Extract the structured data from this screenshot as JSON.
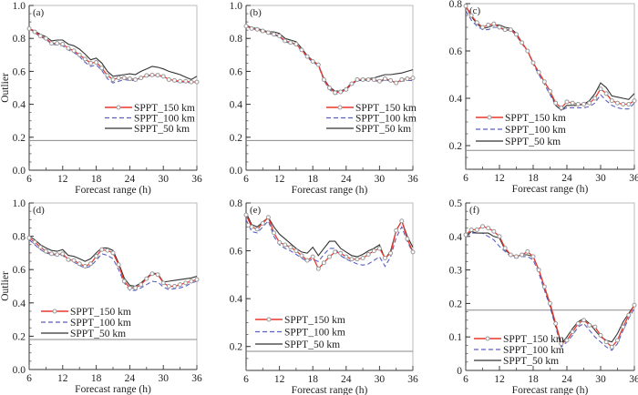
{
  "colors": {
    "s150": "#e8392c",
    "s100": "#5a5fc0",
    "s50": "#333333",
    "marker": "#9a9a9a",
    "threshold": "#888888",
    "frame": "#bbbbbb"
  },
  "chart_data": [
    {
      "type": "line",
      "panel_label": "(a)",
      "xlabel": "Forecast  range  (h)",
      "ylabel": "Outlier",
      "xlim": [
        6,
        36
      ],
      "xticks": [
        6,
        12,
        18,
        24,
        30,
        36
      ],
      "xtick_labels": [
        "6",
        "12",
        "18",
        "24",
        "30",
        "36"
      ],
      "ylim": [
        0,
        1.0
      ],
      "yticks": [
        0,
        0.2,
        0.4,
        0.6,
        0.8,
        1.0
      ],
      "ytick_labels": [
        "0.0",
        "0.2",
        "0.4",
        "0.6",
        "0.8",
        "1.0"
      ],
      "threshold": 0.18,
      "legend_position": "center-right",
      "x": [
        6,
        7,
        8,
        9,
        10,
        11,
        12,
        13,
        14,
        15,
        16,
        17,
        18,
        19,
        20,
        21,
        22,
        23,
        24,
        25,
        26,
        27,
        28,
        29,
        30,
        31,
        32,
        33,
        34,
        35,
        36
      ],
      "series": [
        {
          "name": "SPPT_150 km",
          "values": [
            0.86,
            0.84,
            0.815,
            0.8,
            0.77,
            0.77,
            0.765,
            0.74,
            0.725,
            0.7,
            0.675,
            0.65,
            0.655,
            0.62,
            0.575,
            0.55,
            0.56,
            0.56,
            0.555,
            0.55,
            0.56,
            0.575,
            0.578,
            0.577,
            0.57,
            0.55,
            0.545,
            0.54,
            0.54,
            0.535,
            0.535
          ]
        },
        {
          "name": "SPPT_100 km",
          "values": [
            0.86,
            0.835,
            0.81,
            0.795,
            0.765,
            0.76,
            0.755,
            0.73,
            0.715,
            0.69,
            0.655,
            0.63,
            0.64,
            0.605,
            0.555,
            0.53,
            0.54,
            0.55,
            0.545,
            0.545,
            0.555,
            0.57,
            0.575,
            0.575,
            0.565,
            0.545,
            0.54,
            0.535,
            0.535,
            0.53,
            0.53
          ]
        },
        {
          "name": "SPPT_50 km",
          "values": [
            0.86,
            0.845,
            0.825,
            0.81,
            0.785,
            0.79,
            0.79,
            0.765,
            0.755,
            0.735,
            0.705,
            0.67,
            0.68,
            0.65,
            0.6,
            0.57,
            0.575,
            0.58,
            0.585,
            0.58,
            0.6,
            0.615,
            0.63,
            0.625,
            0.615,
            0.6,
            0.59,
            0.58,
            0.565,
            0.55,
            0.57
          ]
        }
      ]
    },
    {
      "type": "line",
      "panel_label": "(b)",
      "xlabel": "Forecast  range  (h)",
      "ylabel": "",
      "xlim": [
        6,
        36
      ],
      "xticks": [
        6,
        12,
        18,
        24,
        30,
        36
      ],
      "xtick_labels": [
        "6",
        "12",
        "18",
        "24",
        "30",
        "36"
      ],
      "ylim": [
        0,
        1.0
      ],
      "yticks": [
        0,
        0.2,
        0.4,
        0.6,
        0.8,
        1.0
      ],
      "ytick_labels": [
        "0.0",
        "0.2",
        "0.4",
        "0.6",
        "0.8",
        "1.0"
      ],
      "threshold": 0.18,
      "legend_position": "center-right",
      "x": [
        6,
        7,
        8,
        9,
        10,
        11,
        12,
        13,
        14,
        15,
        16,
        17,
        18,
        19,
        20,
        21,
        22,
        23,
        24,
        25,
        26,
        27,
        28,
        29,
        30,
        31,
        32,
        33,
        34,
        35,
        36
      ],
      "series": [
        {
          "name": "SPPT_150 km",
          "values": [
            0.875,
            0.86,
            0.855,
            0.845,
            0.835,
            0.825,
            0.815,
            0.785,
            0.775,
            0.765,
            0.73,
            0.69,
            0.66,
            0.64,
            0.55,
            0.5,
            0.47,
            0.475,
            0.49,
            0.525,
            0.55,
            0.55,
            0.55,
            0.55,
            0.54,
            0.555,
            0.545,
            0.53,
            0.55,
            0.555,
            0.56
          ]
        },
        {
          "name": "SPPT_100 km",
          "values": [
            0.875,
            0.86,
            0.85,
            0.84,
            0.83,
            0.82,
            0.81,
            0.78,
            0.77,
            0.76,
            0.725,
            0.685,
            0.655,
            0.635,
            0.545,
            0.49,
            0.46,
            0.47,
            0.49,
            0.52,
            0.545,
            0.545,
            0.545,
            0.545,
            0.535,
            0.55,
            0.54,
            0.53,
            0.54,
            0.545,
            0.545
          ]
        },
        {
          "name": "SPPT_50 km",
          "values": [
            0.88,
            0.865,
            0.86,
            0.85,
            0.84,
            0.84,
            0.83,
            0.8,
            0.79,
            0.78,
            0.74,
            0.695,
            0.665,
            0.64,
            0.555,
            0.505,
            0.48,
            0.48,
            0.495,
            0.53,
            0.545,
            0.55,
            0.555,
            0.56,
            0.57,
            0.58,
            0.58,
            0.585,
            0.59,
            0.6,
            0.61
          ]
        }
      ]
    },
    {
      "type": "line",
      "panel_label": "(c)",
      "xlabel": "Forecast  range  (h)",
      "ylabel": "",
      "xlim": [
        6,
        36
      ],
      "xticks": [
        6,
        12,
        18,
        24,
        30,
        36
      ],
      "xtick_labels": [
        "6",
        "12",
        "18",
        "24",
        "30",
        "36"
      ],
      "ylim": [
        0.1,
        0.8
      ],
      "yticks": [
        0.2,
        0.4,
        0.6,
        0.8
      ],
      "ytick_labels": [
        "0.2",
        "0.4",
        "0.6",
        "0.8"
      ],
      "threshold": 0.18,
      "legend_position": "lower-left",
      "x": [
        6,
        7,
        8,
        9,
        10,
        11,
        12,
        13,
        14,
        15,
        16,
        17,
        18,
        19,
        20,
        21,
        22,
        23,
        24,
        25,
        26,
        27,
        28,
        29,
        30,
        31,
        32,
        33,
        34,
        35,
        36
      ],
      "series": [
        {
          "name": "SPPT_150 km",
          "values": [
            0.79,
            0.75,
            0.72,
            0.7,
            0.71,
            0.715,
            0.7,
            0.69,
            0.69,
            0.67,
            0.635,
            0.6,
            0.55,
            0.51,
            0.47,
            0.43,
            0.38,
            0.36,
            0.385,
            0.38,
            0.375,
            0.375,
            0.38,
            0.4,
            0.44,
            0.42,
            0.39,
            0.38,
            0.375,
            0.375,
            0.39
          ]
        },
        {
          "name": "SPPT_100 km",
          "values": [
            0.77,
            0.73,
            0.705,
            0.69,
            0.69,
            0.7,
            0.7,
            0.685,
            0.69,
            0.665,
            0.63,
            0.6,
            0.545,
            0.5,
            0.46,
            0.415,
            0.37,
            0.35,
            0.36,
            0.36,
            0.36,
            0.36,
            0.365,
            0.38,
            0.415,
            0.39,
            0.37,
            0.36,
            0.355,
            0.355,
            0.38
          ]
        },
        {
          "name": "SPPT_50 km",
          "values": [
            0.79,
            0.745,
            0.715,
            0.695,
            0.7,
            0.71,
            0.71,
            0.7,
            0.695,
            0.675,
            0.635,
            0.6,
            0.55,
            0.51,
            0.47,
            0.43,
            0.37,
            0.35,
            0.37,
            0.37,
            0.37,
            0.375,
            0.39,
            0.42,
            0.465,
            0.445,
            0.41,
            0.405,
            0.4,
            0.395,
            0.42
          ]
        }
      ]
    },
    {
      "type": "line",
      "panel_label": "(d)",
      "xlabel": "Forecast  range  (h)",
      "ylabel": "Outlier",
      "xlim": [
        6,
        36
      ],
      "xticks": [
        6,
        12,
        18,
        24,
        30,
        36
      ],
      "xtick_labels": [
        "6",
        "12",
        "18",
        "24",
        "30",
        "36"
      ],
      "ylim": [
        0,
        1.0
      ],
      "yticks": [
        0,
        0.2,
        0.4,
        0.6,
        0.8,
        1.0
      ],
      "ytick_labels": [
        "0.0",
        "0.2",
        "0.4",
        "0.6",
        "0.8",
        "1.0"
      ],
      "threshold": 0.18,
      "legend_position": "center-left",
      "x": [
        6,
        7,
        8,
        9,
        10,
        11,
        12,
        13,
        14,
        15,
        16,
        17,
        18,
        19,
        20,
        21,
        22,
        23,
        24,
        25,
        26,
        27,
        28,
        29,
        30,
        31,
        32,
        33,
        34,
        35,
        36
      ],
      "series": [
        {
          "name": "SPPT_150 km",
          "values": [
            0.79,
            0.765,
            0.735,
            0.71,
            0.695,
            0.69,
            0.695,
            0.66,
            0.655,
            0.635,
            0.62,
            0.635,
            0.68,
            0.72,
            0.715,
            0.7,
            0.63,
            0.53,
            0.49,
            0.49,
            0.51,
            0.545,
            0.575,
            0.57,
            0.52,
            0.5,
            0.5,
            0.51,
            0.52,
            0.53,
            0.54
          ]
        },
        {
          "name": "SPPT_100 km",
          "values": [
            0.78,
            0.75,
            0.72,
            0.7,
            0.69,
            0.685,
            0.685,
            0.655,
            0.645,
            0.625,
            0.61,
            0.62,
            0.655,
            0.695,
            0.685,
            0.665,
            0.6,
            0.52,
            0.475,
            0.475,
            0.49,
            0.51,
            0.53,
            0.525,
            0.495,
            0.48,
            0.485,
            0.49,
            0.5,
            0.52,
            0.53
          ]
        },
        {
          "name": "SPPT_50 km",
          "values": [
            0.8,
            0.78,
            0.75,
            0.73,
            0.715,
            0.71,
            0.72,
            0.685,
            0.68,
            0.665,
            0.65,
            0.665,
            0.7,
            0.73,
            0.73,
            0.715,
            0.64,
            0.55,
            0.505,
            0.5,
            0.52,
            0.55,
            0.58,
            0.575,
            0.525,
            0.53,
            0.535,
            0.54,
            0.545,
            0.55,
            0.56
          ]
        }
      ]
    },
    {
      "type": "line",
      "panel_label": "(e)",
      "xlabel": "Forecast  range  (h)",
      "ylabel": "",
      "xlim": [
        6,
        36
      ],
      "xticks": [
        6,
        12,
        18,
        24,
        30,
        36
      ],
      "xtick_labels": [
        "6",
        "12",
        "18",
        "24",
        "30",
        "36"
      ],
      "ylim": [
        0.1,
        0.8
      ],
      "yticks": [
        0.2,
        0.4,
        0.6,
        0.8
      ],
      "ytick_labels": [
        "0.2",
        "0.4",
        "0.6",
        "0.8"
      ],
      "threshold": 0.18,
      "legend_position": "lower-left",
      "x": [
        6,
        7,
        8,
        9,
        10,
        11,
        12,
        13,
        14,
        15,
        16,
        17,
        18,
        19,
        20,
        21,
        22,
        23,
        24,
        25,
        26,
        27,
        28,
        29,
        30,
        31,
        32,
        33,
        34,
        35,
        36
      ],
      "series": [
        {
          "name": "SPPT_150 km",
          "values": [
            0.75,
            0.7,
            0.69,
            0.715,
            0.74,
            0.675,
            0.635,
            0.625,
            0.615,
            0.6,
            0.58,
            0.56,
            0.575,
            0.525,
            0.55,
            0.575,
            0.595,
            0.59,
            0.575,
            0.565,
            0.565,
            0.57,
            0.585,
            0.6,
            0.61,
            0.57,
            0.59,
            0.685,
            0.725,
            0.65,
            0.595
          ]
        },
        {
          "name": "SPPT_100 km",
          "values": [
            0.73,
            0.68,
            0.675,
            0.7,
            0.725,
            0.66,
            0.625,
            0.61,
            0.6,
            0.585,
            0.57,
            0.555,
            0.565,
            0.555,
            0.585,
            0.61,
            0.61,
            0.58,
            0.565,
            0.555,
            0.545,
            0.54,
            0.545,
            0.56,
            0.575,
            0.535,
            0.575,
            0.655,
            0.7,
            0.64,
            0.59
          ]
        },
        {
          "name": "SPPT_50 km",
          "values": [
            0.76,
            0.71,
            0.7,
            0.72,
            0.74,
            0.7,
            0.67,
            0.65,
            0.63,
            0.61,
            0.595,
            0.59,
            0.615,
            0.58,
            0.61,
            0.64,
            0.64,
            0.61,
            0.595,
            0.58,
            0.575,
            0.585,
            0.6,
            0.61,
            0.625,
            0.565,
            0.6,
            0.685,
            0.725,
            0.66,
            0.615
          ]
        }
      ]
    },
    {
      "type": "line",
      "panel_label": "(f)",
      "xlabel": "Forecast  range  (h)",
      "ylabel": "",
      "xlim": [
        6,
        36
      ],
      "xticks": [
        6,
        12,
        18,
        24,
        30,
        36
      ],
      "xtick_labels": [
        "6",
        "12",
        "18",
        "24",
        "30",
        "36"
      ],
      "ylim": [
        0,
        0.5
      ],
      "yticks": [
        0,
        0.1,
        0.2,
        0.3,
        0.4,
        0.5
      ],
      "ytick_labels": [
        "0",
        "0.1",
        "0.2",
        "0.3",
        "0.4",
        "0.5"
      ],
      "threshold": 0.18,
      "legend_position": "lower-left",
      "x": [
        6,
        7,
        8,
        9,
        10,
        11,
        12,
        13,
        14,
        15,
        16,
        17,
        18,
        19,
        20,
        21,
        22,
        23,
        24,
        25,
        26,
        27,
        28,
        29,
        30,
        31,
        32,
        33,
        34,
        35,
        36
      ],
      "series": [
        {
          "name": "SPPT_150 km",
          "values": [
            0.405,
            0.42,
            0.42,
            0.43,
            0.425,
            0.415,
            0.4,
            0.365,
            0.345,
            0.34,
            0.345,
            0.355,
            0.34,
            0.3,
            0.25,
            0.2,
            0.14,
            0.08,
            0.09,
            0.115,
            0.14,
            0.15,
            0.135,
            0.13,
            0.105,
            0.085,
            0.07,
            0.09,
            0.13,
            0.165,
            0.195
          ]
        },
        {
          "name": "SPPT_100 km",
          "values": [
            0.4,
            0.41,
            0.41,
            0.41,
            0.4,
            0.39,
            0.37,
            0.355,
            0.34,
            0.335,
            0.34,
            0.34,
            0.33,
            0.29,
            0.24,
            0.19,
            0.13,
            0.07,
            0.085,
            0.105,
            0.13,
            0.14,
            0.12,
            0.1,
            0.085,
            0.07,
            0.06,
            0.08,
            0.12,
            0.155,
            0.185
          ]
        },
        {
          "name": "SPPT_50 km",
          "values": [
            0.4,
            0.415,
            0.41,
            0.41,
            0.41,
            0.4,
            0.395,
            0.36,
            0.345,
            0.34,
            0.345,
            0.345,
            0.34,
            0.3,
            0.25,
            0.195,
            0.135,
            0.08,
            0.1,
            0.125,
            0.145,
            0.155,
            0.14,
            0.12,
            0.1,
            0.09,
            0.085,
            0.11,
            0.145,
            0.17,
            0.195
          ]
        }
      ]
    }
  ]
}
